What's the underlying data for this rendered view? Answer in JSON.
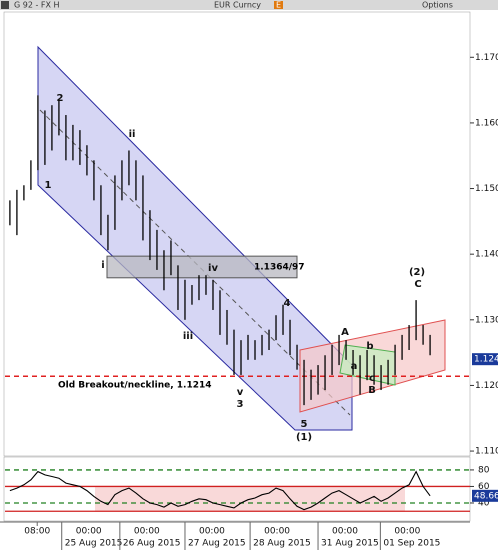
{
  "header": {
    "left": "G 92 - FX H",
    "security": "EUR Curncy",
    "button": "E",
    "options": "Options"
  },
  "chart_data": {
    "type": "ohlc",
    "high": [
      1.1482,
      1.1498,
      1.1505,
      1.1543,
      1.1642,
      1.1619,
      1.1627,
      1.1635,
      1.1612,
      1.1597,
      1.1589,
      1.1566,
      1.1543,
      1.1505,
      1.146,
      1.152,
      1.1543,
      1.1558,
      1.1543,
      1.152,
      1.1467,
      1.1437,
      1.1406,
      1.1421,
      1.1383,
      1.1361,
      1.1353,
      1.1368,
      1.1368,
      1.1361,
      1.1345,
      1.1315,
      1.1285,
      1.1269,
      1.1277,
      1.1269,
      1.1277,
      1.1285,
      1.1307,
      1.1323,
      1.13,
      1.1262,
      1.1239,
      1.1224,
      1.1231,
      1.1246,
      1.1262,
      1.1277,
      1.1269,
      1.1254,
      1.1246,
      1.1254,
      1.1246,
      1.1231,
      1.1239,
      1.1262,
      1.1277,
      1.1292,
      1.133,
      1.1292,
      1.1277
    ],
    "low": [
      1.1444,
      1.1429,
      1.1482,
      1.1498,
      1.1528,
      1.1536,
      1.1558,
      1.1581,
      1.1543,
      1.1543,
      1.1536,
      1.152,
      1.1482,
      1.1429,
      1.1406,
      1.1437,
      1.1482,
      1.1505,
      1.1482,
      1.1421,
      1.1391,
      1.1376,
      1.1345,
      1.1368,
      1.1315,
      1.13,
      1.1323,
      1.133,
      1.1338,
      1.1315,
      1.1277,
      1.1262,
      1.1216,
      1.1216,
      1.1239,
      1.1239,
      1.1246,
      1.1254,
      1.1269,
      1.1277,
      1.1246,
      1.1224,
      1.117,
      1.1178,
      1.1186,
      1.1193,
      1.1216,
      1.1231,
      1.1239,
      1.1216,
      1.1186,
      1.1208,
      1.1201,
      1.1193,
      1.1201,
      1.1216,
      1.1239,
      1.1254,
      1.1269,
      1.1262,
      1.1246
    ],
    "xlim": [
      -0.7,
      65.7
    ],
    "xticks": [
      {
        "value": 3.9,
        "label": "08:00"
      },
      {
        "value": 7.4,
        "label": "00:00",
        "date": "25 Aug 2015"
      },
      {
        "value": 15.7,
        "label": "00:00",
        "date": "26 Aug 2015"
      },
      {
        "value": 25.0,
        "label": "00:00",
        "date": "27 Aug 2015"
      },
      {
        "value": 34.3,
        "label": "00:00",
        "date": "28 Aug 2015"
      },
      {
        "value": 44.0,
        "label": "00:00",
        "date": "31 Aug 2015"
      },
      {
        "value": 52.9,
        "label": "00:00",
        "date": "01 Sep 2015"
      }
    ],
    "ylim": [
      1.1094,
      1.1769
    ],
    "yticks": [
      {
        "value": 1.17,
        "label": "1.170"
      },
      {
        "value": 1.16,
        "label": "1.160"
      },
      {
        "value": 1.15,
        "label": "1.150"
      },
      {
        "value": 1.14,
        "label": "1.140"
      },
      {
        "value": 1.13,
        "label": "1.130"
      },
      {
        "value": 1.12,
        "label": "1.120"
      },
      {
        "value": 1.11,
        "label": "1.110"
      }
    ],
    "last_price": 1.124,
    "color": "#000000",
    "zone": {
      "low": 1.1364,
      "high": 1.1397,
      "label": "1.1364/97",
      "color": "#b8b8c0"
    },
    "breakout": {
      "value": 1.1214,
      "label": "Old Breakout/neckline, 1.1214",
      "color": "#e02020"
    },
    "wave_labels": [
      "2",
      "1",
      "ii",
      "i",
      "iv",
      "iii",
      "v",
      "3",
      "4",
      "5",
      "(1)",
      "A",
      "b",
      "a",
      "c",
      "B",
      "(2)",
      "C"
    ],
    "rsi": {
      "values": [
        55,
        58,
        62,
        68,
        78,
        74,
        72,
        70,
        64,
        62,
        60,
        55,
        48,
        42,
        38,
        50,
        55,
        58,
        52,
        45,
        40,
        38,
        35,
        40,
        36,
        38,
        42,
        45,
        44,
        40,
        38,
        36,
        34,
        40,
        44,
        46,
        50,
        52,
        58,
        55,
        45,
        36,
        32,
        35,
        40,
        46,
        52,
        55,
        50,
        45,
        40,
        44,
        48,
        42,
        46,
        52,
        58,
        62,
        78,
        60,
        48.66
      ],
      "color": "#000000",
      "ylim": [
        19.4,
        92
      ],
      "yticks": [
        80,
        60,
        40
      ],
      "green_levels": [
        80,
        40
      ],
      "red_levels": [
        60,
        30
      ]
    }
  }
}
